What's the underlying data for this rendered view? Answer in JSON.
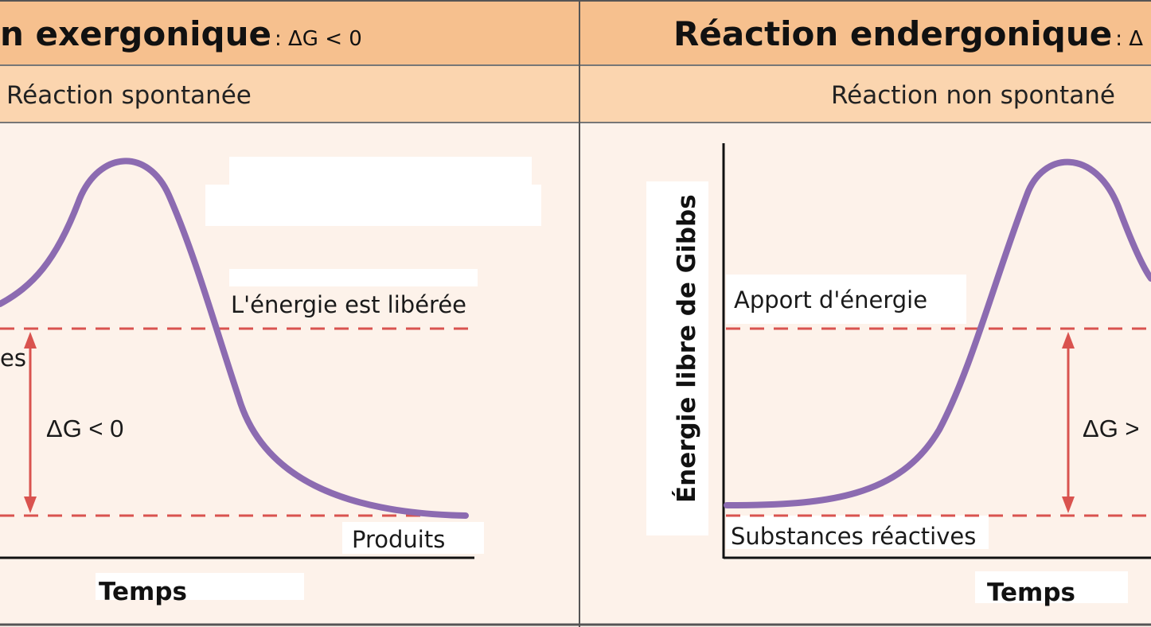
{
  "left_panel": {
    "title_main": "n exergonique",
    "title_condition": ": ΔG < 0",
    "subtitle": "Réaction spontanée",
    "label_energy": "L'énergie est libérée",
    "label_reactants_partial": "es",
    "delta_g": "ΔG < 0",
    "label_products": "Produits",
    "x_axis_label": "Temps"
  },
  "right_panel": {
    "title_main": "Réaction endergonique",
    "title_condition": ": Δ",
    "subtitle": "Réaction non spontané",
    "label_energy": "Apport d'énergie",
    "label_reactants": "Substances réactives",
    "delta_g": "ΔG >",
    "y_axis_label": "Énergie libre de Gibbs",
    "x_axis_label": "Temps"
  },
  "colors": {
    "header_bg": "#f6c08e",
    "subheader_bg": "#fbd5af",
    "panel_bg": "#fdf2ea",
    "border": "#555555",
    "curve": "#8c6bb1",
    "dashed_red": "#d9534f",
    "arrow_red": "#d9534f",
    "axis": "#111111"
  }
}
